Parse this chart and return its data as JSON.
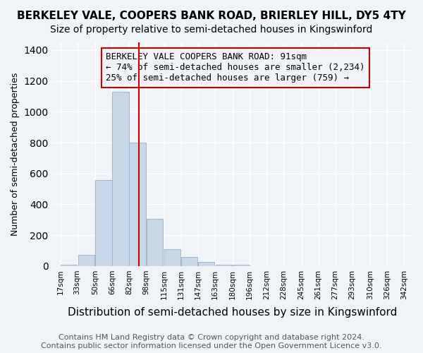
{
  "title": "BERKELEY VALE, COOPERS BANK ROAD, BRIERLEY HILL, DY5 4TY",
  "subtitle": "Size of property relative to semi-detached houses in Kingswinford",
  "xlabel": "Distribution of semi-detached houses by size in Kingswinford",
  "ylabel": "Number of semi-detached properties",
  "annotation_line1": "BERKELEY VALE COOPERS BANK ROAD: 91sqm",
  "annotation_line2": "← 74% of semi-detached houses are smaller (2,234)",
  "annotation_line3": "25% of semi-detached houses are larger (759) →",
  "footer_line1": "Contains HM Land Registry data © Crown copyright and database right 2024.",
  "footer_line2": "Contains public sector information licensed under the Open Government Licence v3.0.",
  "property_value_sqm": 91,
  "bin_edges": [
    17,
    33,
    50,
    66,
    82,
    98,
    115,
    131,
    147,
    163,
    180,
    196,
    212,
    228,
    245,
    261,
    277,
    293,
    310,
    326,
    342
  ],
  "bar_heights": [
    8,
    72,
    557,
    1130,
    800,
    305,
    110,
    57,
    25,
    10,
    7,
    0,
    0,
    0,
    0,
    0,
    0,
    0,
    0,
    0
  ],
  "bar_color": "#c8d8e8",
  "bar_edge_color": "#a0b8cc",
  "vline_color": "#cc0000",
  "vline_x": 91,
  "box_color": "#cc0000",
  "ylim": [
    0,
    1450
  ],
  "yticks": [
    0,
    200,
    400,
    600,
    800,
    1000,
    1200,
    1400
  ],
  "tick_labels": [
    "17sqm",
    "33sqm",
    "50sqm",
    "66sqm",
    "82sqm",
    "98sqm",
    "115sqm",
    "131sqm",
    "147sqm",
    "163sqm",
    "180sqm",
    "196sqm",
    "212sqm",
    "228sqm",
    "245sqm",
    "261sqm",
    "277sqm",
    "293sqm",
    "310sqm",
    "326sqm",
    "342sqm"
  ],
  "background_color": "#f0f4f8",
  "grid_color": "#ffffff",
  "title_fontsize": 11,
  "subtitle_fontsize": 10,
  "xlabel_fontsize": 11,
  "ylabel_fontsize": 9,
  "annotation_fontsize": 9,
  "footer_fontsize": 8
}
